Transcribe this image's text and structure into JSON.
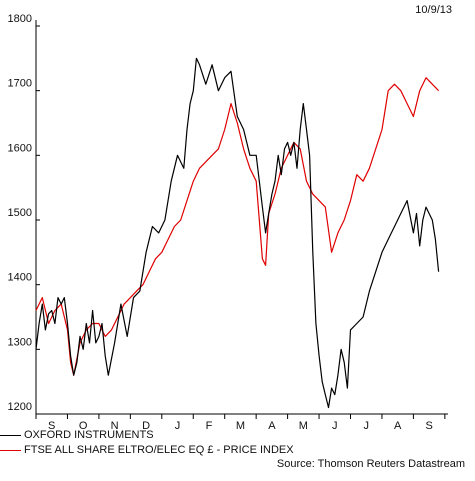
{
  "chart_data": {
    "type": "line",
    "date_label": "10/9/13",
    "title": "",
    "xlabel": "",
    "ylabel": "",
    "source": "Source: Thomson Reuters Datastream",
    "ylim": [
      1200,
      1800
    ],
    "yticks": [
      1200,
      1300,
      1400,
      1500,
      1600,
      1700,
      1800
    ],
    "months": [
      "S",
      "O",
      "N",
      "D",
      "J",
      "F",
      "M",
      "A",
      "M",
      "J",
      "J",
      "A",
      "S"
    ],
    "x_range": [
      0,
      13.1
    ],
    "grid": false,
    "legend_position": "bottom-left",
    "series": [
      {
        "name": "OXFORD INSTRUMENTS",
        "color": "#000000",
        "x": [
          0,
          0.1,
          0.2,
          0.3,
          0.4,
          0.5,
          0.6,
          0.7,
          0.8,
          0.9,
          1.0,
          1.1,
          1.2,
          1.3,
          1.4,
          1.5,
          1.6,
          1.7,
          1.8,
          1.9,
          2.0,
          2.1,
          2.2,
          2.3,
          2.5,
          2.7,
          2.9,
          3.1,
          3.3,
          3.5,
          3.7,
          3.9,
          4.1,
          4.3,
          4.5,
          4.7,
          4.8,
          4.9,
          5.0,
          5.1,
          5.2,
          5.4,
          5.6,
          5.8,
          6.0,
          6.2,
          6.4,
          6.6,
          6.8,
          7.0,
          7.2,
          7.3,
          7.4,
          7.5,
          7.6,
          7.7,
          7.8,
          7.9,
          8.0,
          8.1,
          8.2,
          8.3,
          8.4,
          8.5,
          8.6,
          8.7,
          8.8,
          8.9,
          9.0,
          9.1,
          9.2,
          9.3,
          9.4,
          9.5,
          9.6,
          9.7,
          9.8,
          9.9,
          10.0,
          10.2,
          10.4,
          10.6,
          10.8,
          11.0,
          11.2,
          11.4,
          11.6,
          11.8,
          12.0,
          12.1,
          12.2,
          12.3,
          12.4,
          12.5,
          12.6,
          12.7,
          12.8
        ],
        "values": [
          1300,
          1340,
          1370,
          1330,
          1355,
          1360,
          1340,
          1380,
          1370,
          1380,
          1340,
          1290,
          1260,
          1280,
          1320,
          1300,
          1340,
          1310,
          1360,
          1310,
          1320,
          1340,
          1290,
          1260,
          1310,
          1370,
          1320,
          1380,
          1390,
          1450,
          1490,
          1480,
          1500,
          1560,
          1600,
          1580,
          1640,
          1680,
          1700,
          1750,
          1740,
          1710,
          1740,
          1700,
          1720,
          1730,
          1660,
          1640,
          1600,
          1600,
          1520,
          1480,
          1510,
          1540,
          1560,
          1600,
          1570,
          1610,
          1620,
          1600,
          1620,
          1580,
          1640,
          1680,
          1640,
          1600,
          1450,
          1340,
          1290,
          1250,
          1230,
          1210,
          1240,
          1230,
          1260,
          1300,
          1280,
          1240,
          1330,
          1340,
          1350,
          1390,
          1420,
          1450,
          1470,
          1490,
          1510,
          1530,
          1480,
          1510,
          1460,
          1500,
          1520,
          1510,
          1500,
          1470,
          1420
        ]
      },
      {
        "name": "FTSE ALL SHARE ELTRO/ELEC EQ £ - PRICE INDEX",
        "color": "#e00000",
        "x": [
          0,
          0.2,
          0.4,
          0.6,
          0.8,
          1.0,
          1.1,
          1.2,
          1.4,
          1.6,
          1.8,
          2.0,
          2.2,
          2.4,
          2.6,
          2.8,
          3.0,
          3.2,
          3.4,
          3.6,
          3.8,
          4.0,
          4.2,
          4.4,
          4.6,
          4.8,
          5.0,
          5.2,
          5.4,
          5.6,
          5.8,
          6.0,
          6.2,
          6.4,
          6.6,
          6.8,
          7.0,
          7.2,
          7.3,
          7.4,
          7.6,
          7.8,
          8.0,
          8.2,
          8.4,
          8.6,
          8.8,
          9.0,
          9.2,
          9.4,
          9.6,
          9.8,
          10.0,
          10.2,
          10.4,
          10.6,
          10.8,
          11.0,
          11.1,
          11.2,
          11.4,
          11.6,
          11.8,
          12.0,
          12.2,
          12.4,
          12.6,
          12.8
        ],
        "values": [
          1360,
          1380,
          1340,
          1360,
          1370,
          1330,
          1280,
          1260,
          1310,
          1330,
          1340,
          1340,
          1320,
          1330,
          1350,
          1370,
          1380,
          1390,
          1400,
          1420,
          1440,
          1450,
          1470,
          1490,
          1500,
          1530,
          1560,
          1580,
          1590,
          1600,
          1610,
          1640,
          1680,
          1650,
          1610,
          1580,
          1560,
          1440,
          1430,
          1510,
          1540,
          1580,
          1600,
          1620,
          1610,
          1560,
          1540,
          1530,
          1520,
          1450,
          1480,
          1500,
          1530,
          1570,
          1560,
          1580,
          1610,
          1640,
          1670,
          1700,
          1710,
          1700,
          1680,
          1660,
          1700,
          1720,
          1710,
          1700
        ]
      }
    ]
  }
}
